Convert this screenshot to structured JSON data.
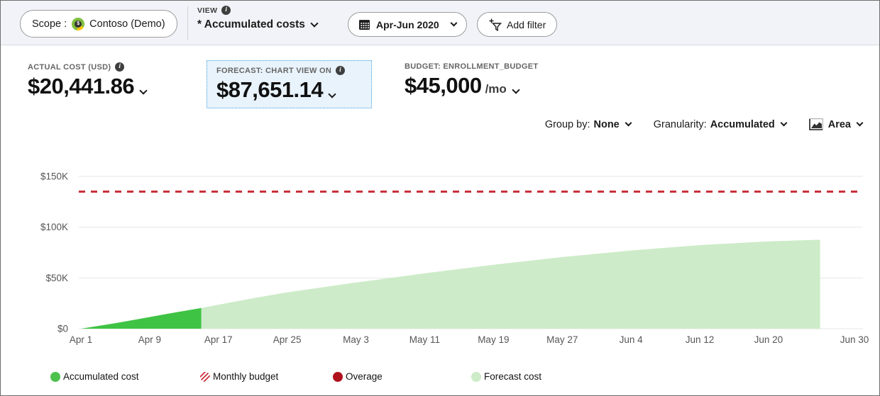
{
  "topbar": {
    "scope_label": "Scope :",
    "scope_value": "Contoso (Demo)",
    "view_label": "VIEW",
    "view_value": "* Accumulated costs",
    "date_range": "Apr-Jun 2020",
    "add_filter_label": "Add filter"
  },
  "kpis": {
    "actual": {
      "label": "ACTUAL COST (USD)",
      "value": "$20,441.86"
    },
    "forecast": {
      "label": "FORECAST: CHART VIEW ON",
      "value": "$87,651.14"
    },
    "budget": {
      "label": "BUDGET: ENROLLMENT_BUDGET",
      "value": "$45,000",
      "suffix": "/mo"
    }
  },
  "controls": {
    "group_by_label": "Group by:",
    "group_by_value": "None",
    "granularity_label": "Granularity:",
    "granularity_value": "Accumulated",
    "chart_type_value": "Area"
  },
  "legend": {
    "items": [
      {
        "label": "Accumulated cost",
        "color": "#4cc24c",
        "style": "solid"
      },
      {
        "label": "Monthly budget",
        "color": "#c9303c",
        "style": "hatched"
      },
      {
        "label": "Overage",
        "color": "#b0121d",
        "style": "solid"
      },
      {
        "label": "Forecast cost",
        "color": "#cdebc8",
        "style": "solid"
      }
    ]
  },
  "colors": {
    "accumulated_area": "#3fc344",
    "forecast_area": "#cdebc8",
    "budget_line": "#c9303c",
    "gridline": "#e7e7e7",
    "forecast_card_bg": "#e9f3fb",
    "forecast_card_border": "#3ba3e0",
    "topbar_bg": "#f2f3f8"
  },
  "chart_data": {
    "type": "area",
    "title": "",
    "xlabel": "",
    "ylabel": "",
    "x_domain_days": [
      0,
      90
    ],
    "x_ticks": [
      {
        "day": 0,
        "label": "Apr 1"
      },
      {
        "day": 8,
        "label": "Apr 9"
      },
      {
        "day": 16,
        "label": "Apr 17"
      },
      {
        "day": 24,
        "label": "Apr 25"
      },
      {
        "day": 32,
        "label": "May 3"
      },
      {
        "day": 40,
        "label": "May 11"
      },
      {
        "day": 48,
        "label": "May 19"
      },
      {
        "day": 56,
        "label": "May 27"
      },
      {
        "day": 64,
        "label": "Jun 4"
      },
      {
        "day": 72,
        "label": "Jun 12"
      },
      {
        "day": 80,
        "label": "Jun 20"
      },
      {
        "day": 90,
        "label": "Jun 30"
      }
    ],
    "ylim": [
      0,
      150000
    ],
    "y_ticks": [
      {
        "value": 0,
        "label": "$0"
      },
      {
        "value": 50000,
        "label": "$50K"
      },
      {
        "value": 100000,
        "label": "$100K"
      },
      {
        "value": 150000,
        "label": "$150K"
      }
    ],
    "budget_line_value": 135000,
    "legend_position": "bottom",
    "grid": true,
    "series": [
      {
        "name": "Accumulated cost",
        "color": "#3fc344",
        "points": [
          [
            0,
            0
          ],
          [
            4,
            5400
          ],
          [
            7,
            9900
          ],
          [
            10,
            14600
          ],
          [
            14,
            20442
          ]
        ]
      },
      {
        "name": "Forecast cost",
        "color": "#cdebc8",
        "points": [
          [
            14,
            20442
          ],
          [
            20,
            30000
          ],
          [
            24,
            35800
          ],
          [
            32,
            45500
          ],
          [
            40,
            54500
          ],
          [
            48,
            63000
          ],
          [
            56,
            70500
          ],
          [
            64,
            77000
          ],
          [
            72,
            82300
          ],
          [
            80,
            86000
          ],
          [
            86,
            87651
          ]
        ]
      }
    ]
  }
}
